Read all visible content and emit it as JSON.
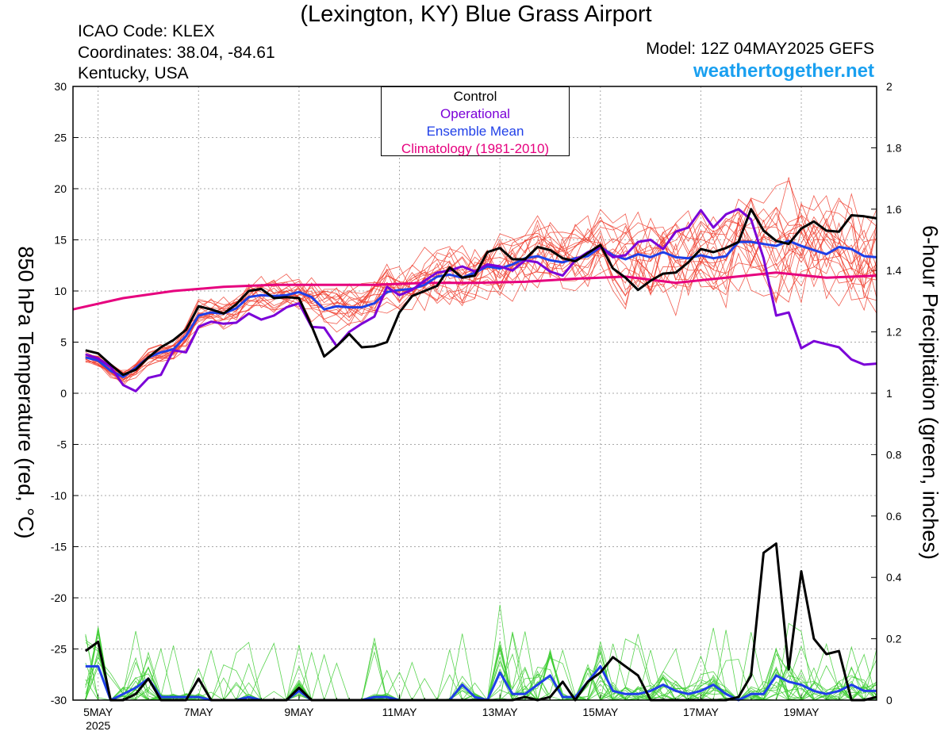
{
  "header": {
    "title": "(Lexington, KY) Blue Grass Airport",
    "icao": "ICAO Code: KLEX",
    "coordinates": "Coordinates: 38.04, -84.61",
    "region": "Kentucky, USA",
    "model": "Model: 12Z 04MAY2025 GEFS",
    "site": "weathertogether.net"
  },
  "colors": {
    "control": "#000000",
    "operational": "#7b00d8",
    "ensemble_mean": "#1f3fe8",
    "climatology": "#e6007e",
    "ensemble_members_temp": "#f04030",
    "ensemble_members_precip": "#3ccc30",
    "site": "#1aa0f0"
  },
  "legend": {
    "items": [
      {
        "label": "Control",
        "color": "#000000"
      },
      {
        "label": "Operational",
        "color": "#7b00d8"
      },
      {
        "label": "Ensemble Mean",
        "color": "#1f3fe8"
      },
      {
        "label": "Climatology (1981-2010)",
        "color": "#e6007e"
      }
    ]
  },
  "chart_data": {
    "type": "line",
    "title": "(Lexington, KY) Blue Grass Airport",
    "xlabel": "",
    "ylabel_left": "850 hPa Temperature (red, °C)",
    "ylabel_right": "6-hour Precipitation (green, inches)",
    "x_unit": "days since 5MAY 00Z",
    "x_range": [
      -0.5,
      15.5
    ],
    "x_ticks": [
      {
        "value": 0,
        "label": "5MAY",
        "sublabel": "2025"
      },
      {
        "value": 2,
        "label": "7MAY"
      },
      {
        "value": 4,
        "label": "9MAY"
      },
      {
        "value": 6,
        "label": "11MAY"
      },
      {
        "value": 8,
        "label": "13MAY"
      },
      {
        "value": 10,
        "label": "15MAY"
      },
      {
        "value": 12,
        "label": "17MAY"
      },
      {
        "value": 14,
        "label": "19MAY"
      }
    ],
    "ylim_left": [
      -30,
      30
    ],
    "yticks_left": [
      30,
      25,
      20,
      15,
      10,
      5,
      0,
      -5,
      -10,
      -15,
      -20,
      -25,
      -30
    ],
    "ylim_right": [
      0,
      2
    ],
    "yticks_right": [
      "2",
      "1.8",
      "1.6",
      "1.4",
      "1.2",
      "1",
      "0.8",
      "0.6",
      "0.4",
      "0.2",
      "0"
    ],
    "grid": true,
    "legend_position": "top-center",
    "series": [
      {
        "name": "Control",
        "axis": "left",
        "x": [
          -0.25,
          0,
          0.25,
          0.5,
          0.75,
          1,
          1.25,
          1.5,
          1.75,
          2,
          2.25,
          2.5,
          2.75,
          3,
          3.25,
          3.5,
          3.75,
          4,
          4.25,
          4.5,
          4.75,
          5,
          5.25,
          5.5,
          5.75,
          6,
          6.25,
          6.5,
          6.75,
          7,
          7.25,
          7.5,
          7.75,
          8,
          8.25,
          8.5,
          8.75,
          9,
          9.25,
          9.5,
          9.75,
          10,
          10.25,
          10.5,
          10.75,
          11,
          11.25,
          11.5,
          11.75,
          12,
          12.25,
          12.5,
          12.75,
          13,
          13.25,
          13.5,
          13.75,
          14,
          14.25,
          14.5,
          14.75,
          15,
          15.25,
          15.5
        ],
        "y": [
          4.2,
          3.9,
          2.8,
          1.8,
          2.3,
          3.5,
          4.5,
          5.2,
          6.2,
          8.5,
          8.2,
          7.8,
          8.7,
          10.0,
          10.2,
          9.3,
          9.4,
          9.3,
          6.6,
          3.6,
          4.6,
          5.8,
          4.5,
          4.6,
          5.0,
          7.9,
          9.5,
          10.0,
          10.5,
          12.3,
          11.3,
          11.5,
          13.8,
          14.2,
          13.1,
          13.1,
          14.3,
          14.0,
          13.2,
          12.9,
          13.7,
          14.5,
          12.2,
          11.3,
          10.1,
          11.0,
          11.7,
          11.8,
          12.8,
          14.1,
          13.8,
          14.2,
          14.8,
          18.0,
          15.9,
          14.9,
          14.6,
          16.1,
          16.8,
          15.9,
          15.8,
          17.4,
          17.3,
          17.1
        ]
      },
      {
        "name": "Operational",
        "axis": "left",
        "x": [
          -0.25,
          0,
          0.25,
          0.5,
          0.75,
          1,
          1.25,
          1.5,
          1.75,
          2,
          2.25,
          2.5,
          2.75,
          3,
          3.25,
          3.5,
          3.75,
          4,
          4.25,
          4.5,
          4.75,
          5,
          5.25,
          5.5,
          5.75,
          6,
          6.25,
          6.5,
          6.75,
          7,
          7.25,
          7.5,
          7.75,
          8,
          8.25,
          8.5,
          8.75,
          9,
          9.25,
          9.5,
          9.75,
          10,
          10.25,
          10.5,
          10.75,
          11,
          11.25,
          11.5,
          11.75,
          12,
          12.25,
          12.5,
          12.75,
          13,
          13.25,
          13.5,
          13.75,
          14,
          14.25,
          14.5,
          14.75,
          15,
          15.25,
          15.5
        ],
        "y": [
          3.8,
          3.4,
          2.6,
          0.8,
          0.2,
          1.5,
          1.8,
          4.2,
          4.0,
          6.5,
          7.0,
          6.8,
          6.9,
          7.8,
          7.2,
          7.6,
          8.4,
          8.8,
          6.5,
          6.4,
          4.6,
          6.0,
          6.8,
          7.5,
          10.4,
          9.6,
          10.1,
          11.0,
          11.8,
          12.0,
          12.4,
          11.9,
          12.6,
          12.4,
          12.0,
          13.0,
          12.8,
          11.9,
          11.5,
          13.0,
          13.8,
          14.3,
          13.3,
          13.5,
          14.8,
          15.0,
          14.1,
          15.8,
          16.2,
          17.9,
          16.2,
          17.5,
          18.0,
          17.0,
          13.2,
          7.6,
          7.9,
          4.4,
          5.1,
          4.8,
          4.5,
          3.3,
          2.8,
          2.9
        ]
      },
      {
        "name": "Ensemble Mean",
        "axis": "left",
        "x": [
          -0.25,
          0,
          0.25,
          0.5,
          0.75,
          1,
          1.25,
          1.5,
          1.75,
          2,
          2.25,
          2.5,
          2.75,
          3,
          3.25,
          3.5,
          3.75,
          4,
          4.25,
          4.5,
          4.75,
          5,
          5.25,
          5.5,
          5.75,
          6,
          6.25,
          6.5,
          6.75,
          7,
          7.25,
          7.5,
          7.75,
          8,
          8.25,
          8.5,
          8.75,
          9,
          9.25,
          9.5,
          9.75,
          10,
          10.25,
          10.5,
          10.75,
          11,
          11.25,
          11.5,
          11.75,
          12,
          12.25,
          12.5,
          12.75,
          13,
          13.25,
          13.5,
          13.75,
          14,
          14.25,
          14.5,
          14.75,
          15,
          15.25,
          15.5
        ],
        "y": [
          3.5,
          3.2,
          2.2,
          1.6,
          2.5,
          3.5,
          4.0,
          4.3,
          5.6,
          7.6,
          7.9,
          7.8,
          8.3,
          9.4,
          9.6,
          9.5,
          9.6,
          9.9,
          9.4,
          8.2,
          8.5,
          8.4,
          8.4,
          8.8,
          9.9,
          10.1,
          10.2,
          10.6,
          11.4,
          11.6,
          11.3,
          11.8,
          12.4,
          12.2,
          12.6,
          13.2,
          13.4,
          13.0,
          12.8,
          13.2,
          13.4,
          14.3,
          13.5,
          13.1,
          13.6,
          13.3,
          13.8,
          13.3,
          13.2,
          13.5,
          13.2,
          13.4,
          14.8,
          14.8,
          14.6,
          14.4,
          14.9,
          14.4,
          14.0,
          13.6,
          14.3,
          14.1,
          13.4,
          13.3
        ]
      },
      {
        "name": "Climatology (1981-2010)",
        "axis": "left",
        "x": [
          -0.5,
          0.5,
          1.5,
          2.5,
          3.5,
          4.5,
          5.5,
          6.5,
          7.5,
          8.5,
          9.5,
          10.5,
          11.5,
          12.5,
          13.5,
          14.5,
          15.5
        ],
        "y": [
          8.2,
          9.3,
          10.0,
          10.4,
          10.6,
          10.6,
          10.6,
          10.8,
          10.8,
          10.9,
          11.2,
          11.4,
          10.8,
          11.3,
          11.8,
          11.3,
          11.5
        ]
      },
      {
        "name": "Control",
        "axis": "right",
        "x": [
          -0.25,
          0,
          0.25,
          0.5,
          0.75,
          1,
          1.25,
          1.5,
          1.75,
          2,
          2.25,
          2.5,
          2.75,
          3,
          3.25,
          3.5,
          3.75,
          4,
          4.25,
          4.5,
          4.75,
          5,
          5.25,
          5.5,
          5.75,
          6,
          6.25,
          6.5,
          6.75,
          7,
          7.25,
          7.5,
          7.75,
          8,
          8.25,
          8.5,
          8.75,
          9,
          9.25,
          9.5,
          9.75,
          10,
          10.25,
          10.5,
          10.75,
          11,
          11.25,
          11.5,
          11.75,
          12,
          12.25,
          12.5,
          12.75,
          13,
          13.25,
          13.5,
          13.75,
          14,
          14.25,
          14.5,
          14.75,
          15,
          15.25,
          15.5
        ],
        "y": [
          0.16,
          0.19,
          0.0,
          0.0,
          0.02,
          0.07,
          0.0,
          0.0,
          0.0,
          0.07,
          0.0,
          0.0,
          0.0,
          0.0,
          0.0,
          0.0,
          0.0,
          0.04,
          0.0,
          0.0,
          0.0,
          0.0,
          0.0,
          0.0,
          0.0,
          0.0,
          0.0,
          0.0,
          0.0,
          0.0,
          0.0,
          0.0,
          0.0,
          0.0,
          0.0,
          0.01,
          0.0,
          0.01,
          0.06,
          0.0,
          0.06,
          0.09,
          0.14,
          0.11,
          0.08,
          0.0,
          0.0,
          0.0,
          0.0,
          0.0,
          0.0,
          0.0,
          0.01,
          0.08,
          0.48,
          0.51,
          0.1,
          0.42,
          0.2,
          0.15,
          0.16,
          0.0,
          0.0,
          0.01
        ]
      },
      {
        "name": "Ensemble Mean",
        "axis": "right",
        "x": [
          -0.25,
          0,
          0.25,
          0.5,
          0.75,
          1,
          1.25,
          1.5,
          1.75,
          2,
          2.25,
          2.5,
          2.75,
          3,
          3.25,
          3.5,
          3.75,
          4,
          4.25,
          4.5,
          4.75,
          5,
          5.25,
          5.5,
          5.75,
          6,
          6.25,
          6.5,
          6.75,
          7,
          7.25,
          7.5,
          7.75,
          8,
          8.25,
          8.5,
          8.75,
          9,
          9.25,
          9.5,
          9.75,
          10,
          10.25,
          10.5,
          10.75,
          11,
          11.25,
          11.5,
          11.75,
          12,
          12.25,
          12.5,
          12.75,
          13,
          13.25,
          13.5,
          13.75,
          14,
          14.25,
          14.5,
          14.75,
          15,
          15.25,
          15.5
        ],
        "y": [
          0.11,
          0.11,
          0.0,
          0.02,
          0.04,
          0.07,
          0.01,
          0.01,
          0.01,
          0.01,
          0.0,
          0.0,
          0.0,
          0.01,
          0.0,
          0.0,
          0.0,
          0.03,
          0.0,
          0.0,
          0.0,
          0.0,
          0.0,
          0.01,
          0.01,
          0.0,
          0.0,
          0.0,
          0.0,
          0.0,
          0.05,
          0.01,
          0.0,
          0.09,
          0.02,
          0.02,
          0.05,
          0.08,
          0.01,
          0.01,
          0.06,
          0.11,
          0.03,
          0.02,
          0.02,
          0.03,
          0.05,
          0.03,
          0.02,
          0.03,
          0.05,
          0.02,
          0.0,
          0.02,
          0.02,
          0.08,
          0.06,
          0.05,
          0.03,
          0.02,
          0.03,
          0.05,
          0.03,
          0.03
        ]
      }
    ]
  }
}
